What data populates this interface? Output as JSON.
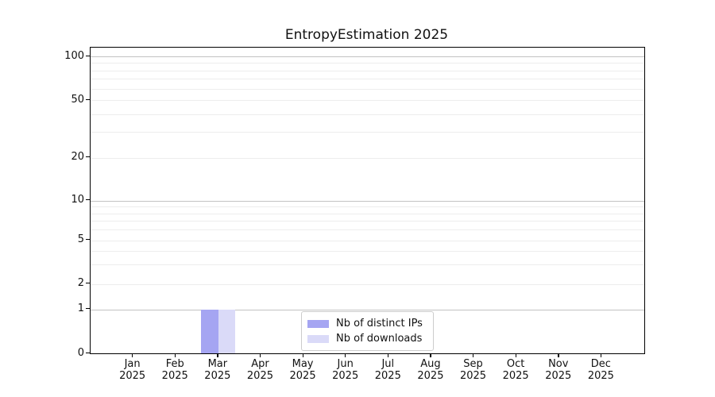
{
  "title": "EntropyEstimation 2025",
  "chart_data": {
    "type": "bar",
    "title": "EntropyEstimation 2025",
    "x_categories": [
      "Jan 2025",
      "Feb 2025",
      "Mar 2025",
      "Apr 2025",
      "May 2025",
      "Jun 2025",
      "Jul 2025",
      "Aug 2025",
      "Sep 2025",
      "Oct 2025",
      "Nov 2025",
      "Dec 2025"
    ],
    "months": [
      "Jan",
      "Feb",
      "Mar",
      "Apr",
      "May",
      "Jun",
      "Jul",
      "Aug",
      "Sep",
      "Oct",
      "Nov",
      "Dec"
    ],
    "year": "2025",
    "series": [
      {
        "name": "Nb of distinct IPs",
        "color": "#a5a5f2",
        "values": [
          0,
          0,
          1,
          0,
          0,
          0,
          0,
          0,
          0,
          0,
          0,
          0
        ]
      },
      {
        "name": "Nb of downloads",
        "color": "#dadaf8",
        "values": [
          0,
          0,
          1,
          0,
          0,
          0,
          0,
          0,
          0,
          0,
          0,
          0
        ]
      }
    ],
    "y_axis": {
      "scale": "symlog",
      "major_tick_labels": [
        "0",
        "1",
        "2",
        "5",
        "10",
        "20",
        "50",
        "100"
      ],
      "major_ticks": [
        0,
        1,
        2,
        5,
        10,
        20,
        50,
        100
      ],
      "decade_gridlines": [
        1,
        10,
        100
      ],
      "minor_gridlines": [
        3,
        4,
        6,
        7,
        8,
        9,
        30,
        40,
        60,
        70,
        80,
        90
      ],
      "ylim": [
        0,
        115
      ]
    },
    "grid": "horizontal",
    "legend_position": "lower center",
    "legend_items": [
      "Nb of distinct IPs",
      "Nb of downloads"
    ]
  },
  "colors": {
    "bar_distinct_ips": "#a5a5f2",
    "bar_downloads": "#dadaf8",
    "grid_major": "#c2c2c2",
    "grid_minor": "#ededed",
    "axis": "#000000",
    "legend_border": "#cccccc",
    "text": "#111111"
  }
}
